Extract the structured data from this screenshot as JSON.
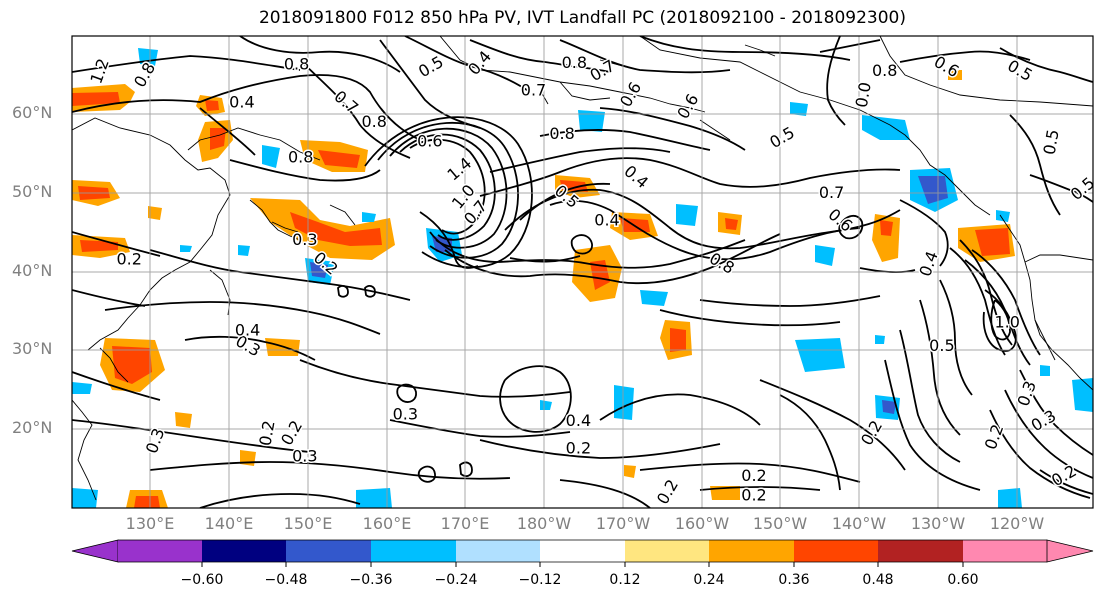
{
  "title": "2018091800 F012 850 hPa PV, IVT Landfall PC (2018092100 - 2018092300)",
  "axes": {
    "lat_ticks": [
      "60°N",
      "50°N",
      "40°N",
      "30°N",
      "20°N"
    ],
    "lat_values": [
      60,
      50,
      40,
      30,
      20
    ],
    "lon_ticks": [
      "130°E",
      "140°E",
      "150°E",
      "160°E",
      "170°E",
      "180°W",
      "170°W",
      "160°W",
      "150°W",
      "140°W",
      "130°W",
      "120°W"
    ],
    "lon_values": [
      130,
      140,
      150,
      160,
      170,
      180,
      190,
      200,
      210,
      220,
      230,
      240
    ],
    "lon_range": [
      120,
      245
    ],
    "lat_range": [
      10,
      70
    ],
    "grid": true
  },
  "colorbar": {
    "ticks": [
      "−0.60",
      "−0.48",
      "−0.36",
      "−0.24",
      "−0.12",
      "0.12",
      "0.24",
      "0.36",
      "0.48",
      "0.60"
    ],
    "tick_values": [
      -0.6,
      -0.48,
      -0.36,
      -0.24,
      -0.12,
      0.12,
      0.24,
      0.36,
      0.48,
      0.6
    ],
    "colors": [
      "#9932cc",
      "#000080",
      "#3358cc",
      "#00bfff",
      "#b0e0ff",
      "#ffffff",
      "#ffe680",
      "#ffa500",
      "#ff4500",
      "#b22222",
      "#ff88b0"
    ],
    "extend": "both"
  },
  "contour_labels": [
    {
      "text": "1.2",
      "lon": 123.5,
      "lat": 65.5,
      "rot": -70
    },
    {
      "text": "0.8",
      "lon": 129,
      "lat": 65,
      "rot": -60
    },
    {
      "text": "0.8",
      "lon": 147.5,
      "lat": 66.3,
      "rot": 0
    },
    {
      "text": "0.5",
      "lon": 164,
      "lat": 66,
      "rot": -30
    },
    {
      "text": "0.4",
      "lon": 170,
      "lat": 66.5,
      "rot": -50
    },
    {
      "text": "0.8",
      "lon": 181.5,
      "lat": 66.5,
      "rot": 0
    },
    {
      "text": "0.7",
      "lon": 185,
      "lat": 65.5,
      "rot": -30
    },
    {
      "text": "0.6",
      "lon": 188.5,
      "lat": 62.5,
      "rot": -60
    },
    {
      "text": "0.7",
      "lon": 176.5,
      "lat": 63,
      "rot": 0
    },
    {
      "text": "0.6",
      "lon": 195.5,
      "lat": 61,
      "rot": -60
    },
    {
      "text": "0.8",
      "lon": 180,
      "lat": 57.5,
      "rot": 0
    },
    {
      "text": "0.5",
      "lon": 207,
      "lat": 57,
      "rot": -30
    },
    {
      "text": "0.7",
      "lon": 153.5,
      "lat": 61.5,
      "rot": 40
    },
    {
      "text": "0.8",
      "lon": 157,
      "lat": 59,
      "rot": 0
    },
    {
      "text": "0.4",
      "lon": 140.8,
      "lat": 61.5,
      "rot": 0
    },
    {
      "text": "0.6",
      "lon": 163.8,
      "lat": 56.5,
      "rot": 0
    },
    {
      "text": "0.8",
      "lon": 148,
      "lat": 54.5,
      "rot": 0
    },
    {
      "text": "1.4",
      "lon": 167.5,
      "lat": 53,
      "rot": -40
    },
    {
      "text": "1.0",
      "lon": 168,
      "lat": 49.5,
      "rot": -50
    },
    {
      "text": "0.7",
      "lon": 169.5,
      "lat": 47.5,
      "rot": -50
    },
    {
      "text": "0.4",
      "lon": 189,
      "lat": 52,
      "rot": 40
    },
    {
      "text": "0.5",
      "lon": 180.5,
      "lat": 49.5,
      "rot": 40
    },
    {
      "text": "0.4",
      "lon": 185.5,
      "lat": 46.5,
      "rot": 0
    },
    {
      "text": "0.8",
      "lon": 199.5,
      "lat": 41,
      "rot": 30
    },
    {
      "text": "0.6",
      "lon": 214,
      "lat": 46.5,
      "rot": 40
    },
    {
      "text": "0.7",
      "lon": 213,
      "lat": 50,
      "rot": 0
    },
    {
      "text": "0.3",
      "lon": 148.5,
      "lat": 44,
      "rot": 0
    },
    {
      "text": "0.2",
      "lon": 151,
      "lat": 41,
      "rot": 40
    },
    {
      "text": "0.2",
      "lon": 127,
      "lat": 41.5,
      "rot": 0
    },
    {
      "text": "0.8",
      "lon": 219.5,
      "lat": 65.5,
      "rot": 0
    },
    {
      "text": "0.6",
      "lon": 227,
      "lat": 66,
      "rot": 30
    },
    {
      "text": "0.5",
      "lon": 236,
      "lat": 65.5,
      "rot": 30
    },
    {
      "text": "0.5",
      "lon": 240,
      "lat": 56.5,
      "rot": -80
    },
    {
      "text": "0.5",
      "lon": 243.8,
      "lat": 50.5,
      "rot": -40
    },
    {
      "text": "0.0",
      "lon": 217,
      "lat": 62.5,
      "rot": -80
    },
    {
      "text": "0.4",
      "lon": 225,
      "lat": 41,
      "rot": -70
    },
    {
      "text": "1.0",
      "lon": 234.5,
      "lat": 33.5,
      "rot": 0
    },
    {
      "text": "0.5",
      "lon": 226.5,
      "lat": 30.5,
      "rot": 0
    },
    {
      "text": "0.3",
      "lon": 237,
      "lat": 24.5,
      "rot": -70
    },
    {
      "text": "0.2",
      "lon": 233,
      "lat": 19,
      "rot": -70
    },
    {
      "text": "0.3",
      "lon": 239,
      "lat": 21,
      "rot": -30
    },
    {
      "text": "0.3",
      "lon": 141.5,
      "lat": 30.5,
      "rot": 30
    },
    {
      "text": "0.4",
      "lon": 141.5,
      "lat": 32.5,
      "rot": 0
    },
    {
      "text": "0.3",
      "lon": 130.3,
      "lat": 18.5,
      "rot": -70
    },
    {
      "text": "0.2",
      "lon": 144,
      "lat": 19.5,
      "rot": -80
    },
    {
      "text": "0.2",
      "lon": 147,
      "lat": 19.5,
      "rot": -60
    },
    {
      "text": "0.3",
      "lon": 148.5,
      "lat": 16.5,
      "rot": 0
    },
    {
      "text": "0.3",
      "lon": 160.8,
      "lat": 21.8,
      "rot": 0
    },
    {
      "text": "0.4",
      "lon": 182,
      "lat": 21,
      "rot": 0
    },
    {
      "text": "0.2",
      "lon": 182,
      "lat": 17.5,
      "rot": 0
    },
    {
      "text": "0.2",
      "lon": 218,
      "lat": 19.5,
      "rot": -60
    },
    {
      "text": "0.2",
      "lon": 203.5,
      "lat": 14,
      "rot": 0
    },
    {
      "text": "0.2",
      "lon": 203.5,
      "lat": 11.5,
      "rot": 0
    },
    {
      "text": "0.2",
      "lon": 193,
      "lat": 12,
      "rot": -60
    },
    {
      "text": "0.2",
      "lon": 241.5,
      "lat": 14,
      "rot": -30
    }
  ]
}
